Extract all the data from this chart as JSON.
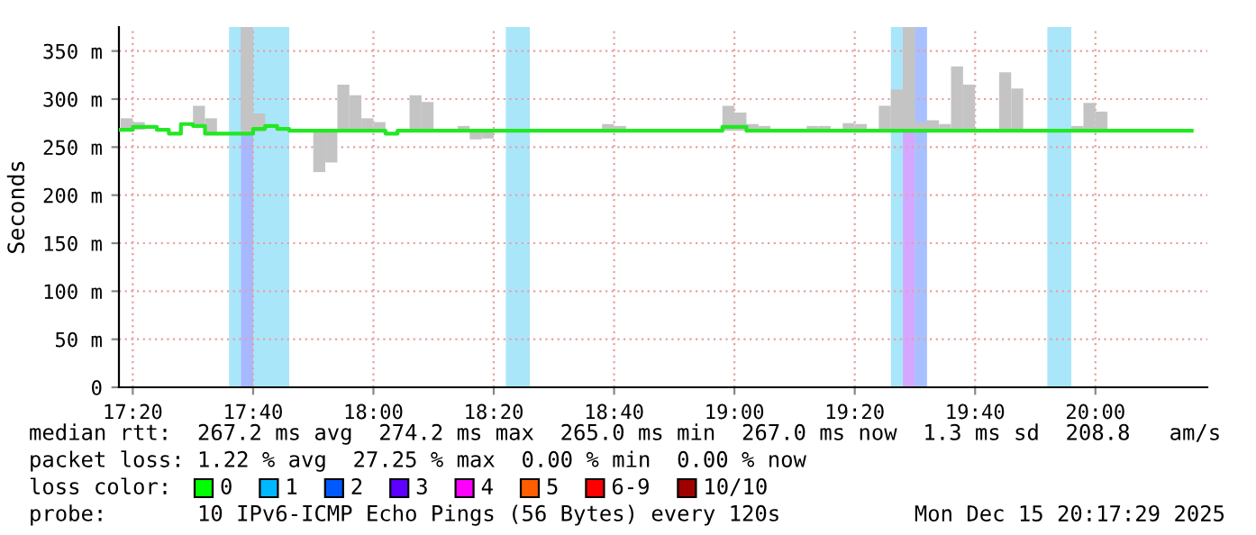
{
  "chart_data": {
    "type": "step",
    "ylabel": "Seconds",
    "xlim": [
      17.295,
      20.31
    ],
    "ylim": [
      0,
      375
    ],
    "xticks": [
      {
        "value": 17.3333,
        "label": "17:20"
      },
      {
        "value": 17.6667,
        "label": "17:40"
      },
      {
        "value": 18.0,
        "label": "18:00"
      },
      {
        "value": 18.3333,
        "label": "18:20"
      },
      {
        "value": 18.6667,
        "label": "18:40"
      },
      {
        "value": 19.0,
        "label": "19:00"
      },
      {
        "value": 19.3333,
        "label": "19:20"
      },
      {
        "value": 19.6667,
        "label": "19:40"
      },
      {
        "value": 20.0,
        "label": "20:00"
      }
    ],
    "yticks": [
      0,
      {
        "value": 50,
        "label": "50 m"
      },
      {
        "value": 100,
        "label": "100 m"
      },
      {
        "value": 150,
        "label": "150 m"
      },
      {
        "value": 200,
        "label": "200 m"
      },
      {
        "value": 250,
        "label": "250 m"
      },
      {
        "value": 300,
        "label": "300 m"
      },
      {
        "value": 350,
        "label": "350 m"
      }
    ],
    "grid": true,
    "series": [
      {
        "type": "bar",
        "color": "#c4c4c4",
        "x": [
          17.3,
          17.3333,
          17.5,
          17.5333,
          17.6333,
          17.6667,
          17.8333,
          17.8667,
          17.9,
          17.9333,
          17.9667,
          18.0,
          18.1,
          18.1333,
          18.2333,
          18.2667,
          18.3,
          18.6333,
          18.6667,
          18.9667,
          19.0,
          19.0333,
          19.0667,
          19.2,
          19.2333,
          19.3,
          19.3333,
          19.4,
          19.4333,
          19.4667,
          19.5,
          19.5333,
          19.5667,
          19.6,
          19.6333,
          19.7333,
          19.7667,
          19.9333,
          19.9667,
          20.0
        ],
        "base": [
          267,
          268,
          270,
          264,
          264,
          266,
          224,
          234,
          267,
          267,
          267,
          267,
          267,
          267,
          267,
          258,
          259,
          267,
          267,
          267,
          267,
          267,
          267,
          267,
          267,
          267,
          267,
          267,
          267,
          267,
          267,
          267,
          267,
          267,
          267,
          267,
          267,
          267,
          267,
          267
        ],
        "values": [
          13,
          8,
          23,
          16,
          111,
          19,
          44,
          34,
          48,
          37,
          13,
          9,
          37,
          30,
          5,
          10,
          8,
          7,
          5,
          26,
          19,
          7,
          5,
          5,
          5,
          8,
          7,
          26,
          43,
          108,
          9,
          11,
          7,
          67,
          48,
          61,
          44,
          5,
          29,
          20
        ]
      },
      {
        "color": "#22e822",
        "x": [
          17.3,
          17.3333,
          17.4,
          17.4333,
          17.4667,
          17.5,
          17.5333,
          17.6667,
          17.7,
          17.7333,
          17.7667,
          18.0333,
          18.0667,
          18.9667,
          19.0333,
          20.2667
        ],
        "values": [
          268,
          271,
          268,
          264,
          274,
          272,
          264,
          269,
          272,
          269,
          267,
          264,
          267,
          271,
          267,
          267
        ]
      }
    ],
    "bands": [
      {
        "axis": "x",
        "from": 17.6,
        "to": 17.7667,
        "color": "#aae6fa"
      },
      {
        "axis": "x",
        "from": 17.6333,
        "to": 17.6667,
        "color": "#a8b8ff"
      },
      {
        "axis": "x",
        "from": 18.3667,
        "to": 18.4333,
        "color": "#aae6fa"
      },
      {
        "axis": "x",
        "from": 19.4333,
        "to": 19.5333,
        "color": "#aae6fa"
      },
      {
        "axis": "x",
        "from": 19.4667,
        "to": 19.5,
        "color": "#d4a8ff"
      },
      {
        "axis": "x",
        "from": 19.5,
        "to": 19.5333,
        "color": "#a8c0ff"
      },
      {
        "axis": "x",
        "from": 19.8667,
        "to": 19.9333,
        "color": "#aae6fa"
      }
    ],
    "annotations": [
      "median rtt:  267.2 ms avg  274.2 ms max  265.0 ms min  267.0 ms now  1.3 ms sd  208.8   am/s",
      "packet loss: 1.22 % avg  27.25 % max  0.00 % min  0.00 % now",
      "loss color:",
      "0",
      "1",
      "2",
      "3",
      "4",
      "5",
      "6-9",
      "10/10",
      "probe:       10 IPv6-ICMP Echo Pings (56 Bytes) every 120s",
      "Mon Dec 15 20:17:29 2025"
    ]
  }
}
